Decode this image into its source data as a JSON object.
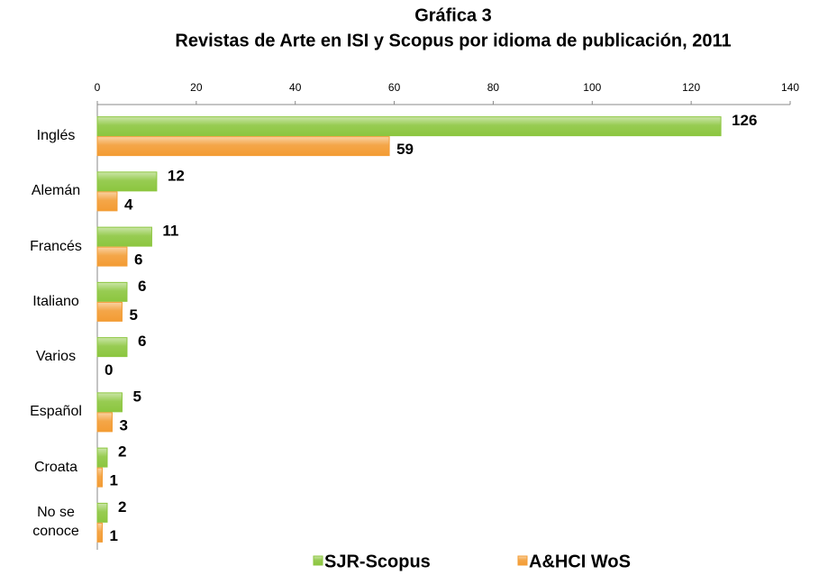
{
  "chart_data": {
    "type": "bar",
    "orientation": "horizontal",
    "title": "Gráfica 3",
    "subtitle": "Revistas de Arte en ISI y Scopus por idioma de publicación, 2011",
    "categories": [
      "Inglés",
      "Alemán",
      "Francés",
      "Italiano",
      "Varios",
      "Español",
      "Croata",
      "No se conoce"
    ],
    "series": [
      {
        "name": "SJR-Scopus",
        "color": "#8cc63f",
        "values": [
          126,
          12,
          11,
          6,
          6,
          5,
          2,
          2
        ]
      },
      {
        "name": "A&HCI WoS",
        "color": "#f39c34",
        "values": [
          59,
          4,
          6,
          5,
          0,
          3,
          1,
          1
        ]
      }
    ],
    "xlim": [
      0,
      140
    ],
    "xticks": [
      0,
      20,
      40,
      60,
      80,
      100,
      120,
      140
    ],
    "grid": false,
    "legend": "bottom"
  }
}
